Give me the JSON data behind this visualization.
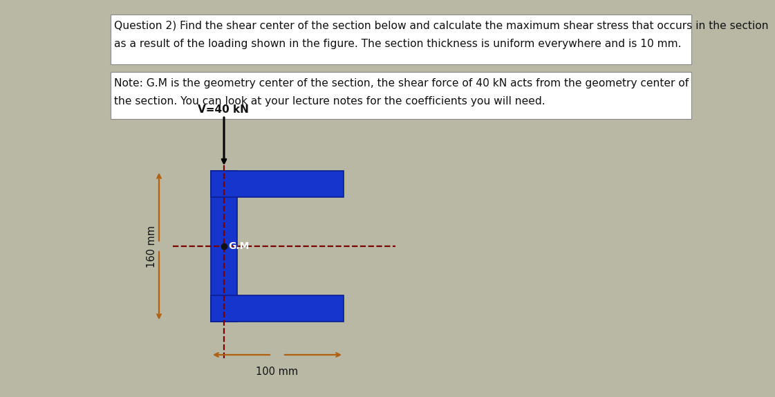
{
  "bg_color": "#b8b8a4",
  "text1_line1": "Question 2) Find the shear center of the section below and calculate the maximum shear stress that occurs in the section",
  "text1_line2": "as a result of the loading shown in the figure. The section thickness is uniform everywhere and is 10 mm.",
  "text2_line1": "Note: G.M is the geometry center of the section, the shear force of 40 kN acts from the geometry center of",
  "text2_line2": "the section. You can look at your lecture notes for the coefficients you will need.",
  "section_color": "#1535cc",
  "section_edge_color": "#0a1f90",
  "v_label": "V=40 kN",
  "dim_160": "160 mm",
  "dim_100": "100 mm",
  "gm_label": "G.M",
  "dashed_color": "#7a0000",
  "arrow_color": "#000000",
  "dim_arrow_color": "#b06010",
  "text_color": "#111111",
  "font_size_text": 11.2,
  "font_size_dim": 10.5
}
